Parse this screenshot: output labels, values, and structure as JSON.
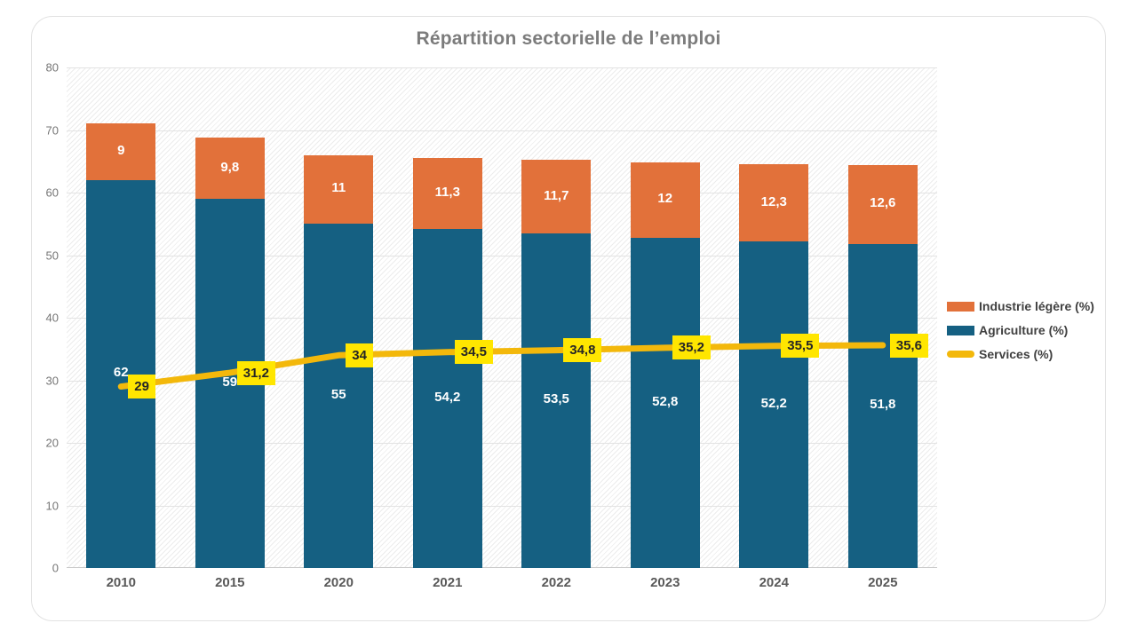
{
  "chart_data": {
    "type": "bar",
    "subtype": "stacked-bars-with-line-overlay",
    "title": "Répartition sectorielle de l’emploi",
    "categories": [
      "2010",
      "2015",
      "2020",
      "2021",
      "2022",
      "2023",
      "2024",
      "2025"
    ],
    "series": [
      {
        "name": "Agriculture (%)",
        "render": "bar",
        "stack_index": 0,
        "color": "#156082",
        "values": [
          62,
          59,
          55,
          54.2,
          53.5,
          52.8,
          52.2,
          51.8
        ],
        "value_labels": [
          "62",
          "59",
          "55",
          "54,2",
          "53,5",
          "52,8",
          "52,2",
          "51,8"
        ],
        "label_color": "#ffffff"
      },
      {
        "name": "Industrie légère (%)",
        "render": "bar",
        "stack_index": 1,
        "color": "#e2713a",
        "values": [
          9,
          9.8,
          11,
          11.3,
          11.7,
          12,
          12.3,
          12.6
        ],
        "value_labels": [
          "9",
          "9,8",
          "11",
          "11,3",
          "11,7",
          "12",
          "12,3",
          "12,6"
        ],
        "label_color": "#ffffff"
      },
      {
        "name": "Services (%)",
        "render": "line",
        "color": "#f3b80b",
        "values": [
          29,
          31.2,
          34,
          34.5,
          34.8,
          35.2,
          35.5,
          35.6
        ],
        "value_labels": [
          "29",
          "31,2",
          "34",
          "34,5",
          "34,8",
          "35,2",
          "35,5",
          "35,6"
        ],
        "label_bg": "#ffe600",
        "label_color": "#262626"
      }
    ],
    "legend": [
      {
        "label": "Industrie légère (%)",
        "color": "#e2713a",
        "shape": "rect"
      },
      {
        "label": "Agriculture (%)",
        "color": "#156082",
        "shape": "rect"
      },
      {
        "label": "Services (%)",
        "color": "#f3b80b",
        "shape": "line"
      }
    ],
    "legend_position": "right",
    "y_axis": {
      "min": 0,
      "max": 80,
      "step": 10,
      "ticks": [
        "0",
        "10",
        "20",
        "30",
        "40",
        "50",
        "60",
        "70",
        "80"
      ]
    },
    "grid": true,
    "plot_background": "diagonal-hatch"
  }
}
